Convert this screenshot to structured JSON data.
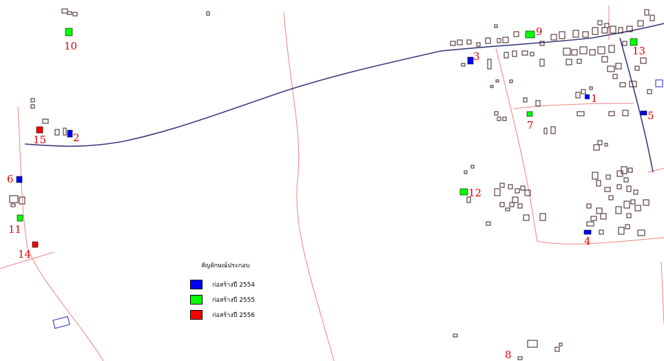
{
  "legend": {
    "title": "สัญลักษณ์ประกอบ",
    "items": [
      {
        "label": "ก่อสร้างปี 2554",
        "color": "#0000ff"
      },
      {
        "label": "ก่อสร้างปี 2555",
        "color": "#00ff00"
      },
      {
        "label": "ก่อสร้างปี 2556",
        "color": "#ff0000"
      }
    ]
  },
  "markers": [
    {
      "id": "1",
      "label": "1",
      "year_color": "#0000ff"
    },
    {
      "id": "2",
      "label": "2",
      "year_color": "#0000ff"
    },
    {
      "id": "3",
      "label": "3",
      "year_color": "#0000ff"
    },
    {
      "id": "4",
      "label": "4",
      "year_color": "#0000ff"
    },
    {
      "id": "5",
      "label": "5",
      "year_color": "#0000ff"
    },
    {
      "id": "6",
      "label": "6",
      "year_color": "#0000ff"
    },
    {
      "id": "7",
      "label": "7",
      "year_color": "#00ff00"
    },
    {
      "id": "8",
      "label": "8",
      "year_color": "#000000"
    },
    {
      "id": "9",
      "label": "9",
      "year_color": "#00ff00"
    },
    {
      "id": "10",
      "label": "10",
      "year_color": "#00ff00"
    },
    {
      "id": "11",
      "label": "11",
      "year_color": "#00ff00"
    },
    {
      "id": "12",
      "label": "12",
      "year_color": "#00ff00"
    },
    {
      "id": "13",
      "label": "13",
      "year_color": "#00ff00"
    },
    {
      "id": "14",
      "label": "14",
      "year_color": "#ff0000"
    },
    {
      "id": "15",
      "label": "15",
      "year_color": "#ff0000"
    }
  ],
  "colors": {
    "main_road": "#3a3a7a",
    "minor_road": "#f08080",
    "building_outline": "#3a1a1a",
    "label": "#e00000"
  }
}
